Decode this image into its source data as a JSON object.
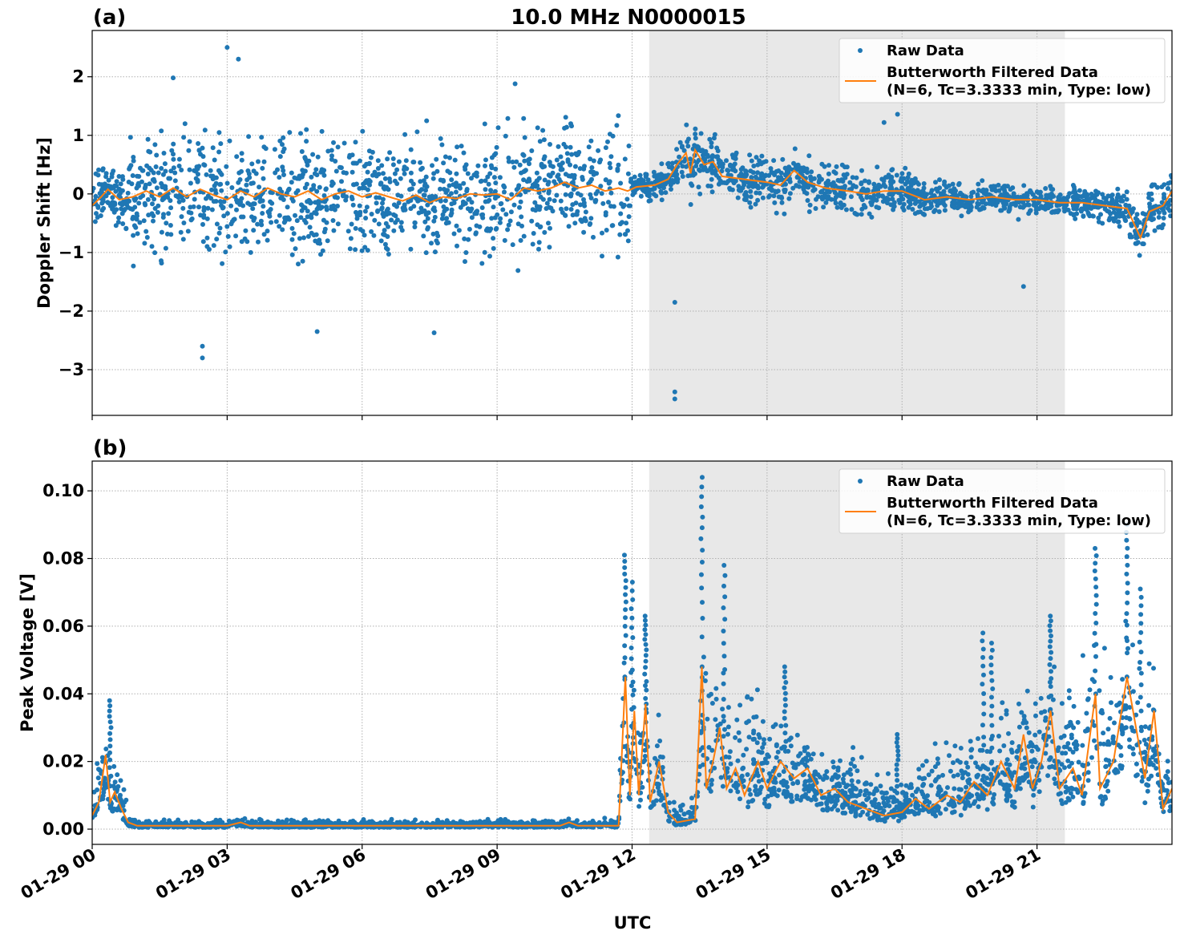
{
  "title": "10.0 MHz N0000015",
  "colors": {
    "raw": "#1f77b4",
    "filtered": "#ff7f0e",
    "shade": "#e8e8e8",
    "grid": "#b0b0b0"
  },
  "legend": {
    "raw": "Raw Data",
    "filtered_line1": "Butterworth Filtered Data",
    "filtered_line2": "(N=6, Tc=3.3333 min, Type: low)",
    "placement": "top-right"
  },
  "xlabel": "UTC",
  "x_ticks": [
    {
      "hour": 0,
      "label": "01-29 00"
    },
    {
      "hour": 3,
      "label": "01-29 03"
    },
    {
      "hour": 6,
      "label": "01-29 06"
    },
    {
      "hour": 9,
      "label": "01-29 09"
    },
    {
      "hour": 12,
      "label": "01-29 12"
    },
    {
      "hour": 15,
      "label": "01-29 15"
    },
    {
      "hour": 18,
      "label": "01-29 18"
    },
    {
      "hour": 21,
      "label": "01-29 21"
    }
  ],
  "chart_data": [
    {
      "type": "scatter",
      "panel": "(a)",
      "ylabel": "Doppler Shift [Hz]",
      "xlim_hours_utc": [
        0,
        24
      ],
      "ylim": [
        -3.78,
        2.79
      ],
      "y_ticks": [
        {
          "v": 2,
          "label": "2"
        },
        {
          "v": 1,
          "label": "1"
        },
        {
          "v": 0,
          "label": "0"
        },
        {
          "v": -1,
          "label": "−1"
        },
        {
          "v": -2,
          "label": "−2"
        },
        {
          "v": -3,
          "label": "−3"
        }
      ],
      "grid": true,
      "shaded_interval_hours_utc": [
        12.38,
        21.62
      ],
      "filtered": [
        [
          0,
          -0.2
        ],
        [
          0.2,
          -0.05
        ],
        [
          0.35,
          0.08
        ],
        [
          0.6,
          -0.1
        ],
        [
          0.9,
          -0.05
        ],
        [
          1.2,
          0.05
        ],
        [
          1.5,
          -0.05
        ],
        [
          1.8,
          0.1
        ],
        [
          2.1,
          -0.05
        ],
        [
          2.4,
          0.08
        ],
        [
          2.7,
          -0.02
        ],
        [
          3.0,
          -0.1
        ],
        [
          3.3,
          0.05
        ],
        [
          3.6,
          -0.05
        ],
        [
          3.9,
          0.1
        ],
        [
          4.2,
          0.0
        ],
        [
          4.5,
          -0.05
        ],
        [
          4.8,
          0.05
        ],
        [
          5.1,
          -0.1
        ],
        [
          5.4,
          0.0
        ],
        [
          5.7,
          0.05
        ],
        [
          6.0,
          -0.05
        ],
        [
          6.3,
          0.02
        ],
        [
          6.6,
          -0.05
        ],
        [
          6.9,
          -0.12
        ],
        [
          7.2,
          -0.02
        ],
        [
          7.5,
          -0.15
        ],
        [
          7.8,
          -0.05
        ],
        [
          8.1,
          -0.08
        ],
        [
          8.4,
          0.0
        ],
        [
          8.7,
          -0.02
        ],
        [
          9.0,
          0.0
        ],
        [
          9.3,
          -0.1
        ],
        [
          9.6,
          0.1
        ],
        [
          9.9,
          0.05
        ],
        [
          10.2,
          0.1
        ],
        [
          10.5,
          0.2
        ],
        [
          10.8,
          0.1
        ],
        [
          11.1,
          0.15
        ],
        [
          11.4,
          0.05
        ],
        [
          11.7,
          0.1
        ],
        [
          11.9,
          0.05
        ],
        [
          12.1,
          0.12
        ],
        [
          12.5,
          0.15
        ],
        [
          12.8,
          0.25
        ],
        [
          13.0,
          0.5
        ],
        [
          13.2,
          0.7
        ],
        [
          13.3,
          0.35
        ],
        [
          13.4,
          0.75
        ],
        [
          13.6,
          0.5
        ],
        [
          13.8,
          0.55
        ],
        [
          14.0,
          0.3
        ],
        [
          14.5,
          0.25
        ],
        [
          15.0,
          0.2
        ],
        [
          15.3,
          0.15
        ],
        [
          15.6,
          0.4
        ],
        [
          15.9,
          0.2
        ],
        [
          16.3,
          0.1
        ],
        [
          16.8,
          0.05
        ],
        [
          17.2,
          0.0
        ],
        [
          17.6,
          0.05
        ],
        [
          18.0,
          0.05
        ],
        [
          18.5,
          -0.1
        ],
        [
          19.0,
          -0.05
        ],
        [
          19.5,
          -0.1
        ],
        [
          20.0,
          -0.05
        ],
        [
          20.5,
          -0.1
        ],
        [
          21.0,
          -0.1
        ],
        [
          21.5,
          -0.15
        ],
        [
          22.0,
          -0.15
        ],
        [
          22.5,
          -0.2
        ],
        [
          23.0,
          -0.25
        ],
        [
          23.3,
          -0.75
        ],
        [
          23.5,
          -0.3
        ],
        [
          23.8,
          -0.2
        ],
        [
          24.0,
          0.05
        ]
      ],
      "raw_spread_halfwidth": [
        [
          0,
          0.35
        ],
        [
          0.8,
          0.4
        ],
        [
          0.9,
          0.8
        ],
        [
          11.9,
          0.8
        ],
        [
          12.0,
          0.15
        ],
        [
          12.8,
          0.2
        ],
        [
          13.0,
          0.45
        ],
        [
          14.0,
          0.35
        ],
        [
          18.0,
          0.3
        ],
        [
          19.0,
          0.2
        ],
        [
          22.0,
          0.2
        ],
        [
          23.3,
          0.35
        ],
        [
          24.0,
          0.3
        ]
      ],
      "raw_outliers": [
        [
          3.0,
          2.5
        ],
        [
          3.25,
          2.3
        ],
        [
          2.45,
          -2.8
        ],
        [
          2.45,
          -2.6
        ],
        [
          12.95,
          -3.5
        ],
        [
          12.95,
          -3.38
        ],
        [
          12.95,
          -1.85
        ],
        [
          1.8,
          1.98
        ],
        [
          9.4,
          1.88
        ],
        [
          7.6,
          -2.37
        ],
        [
          5.0,
          -2.35
        ],
        [
          17.9,
          1.36
        ],
        [
          17.6,
          1.22
        ],
        [
          20.7,
          -1.58
        ]
      ]
    },
    {
      "type": "scatter",
      "panel": "(b)",
      "ylabel": "Peak Voltage [V]",
      "xlim_hours_utc": [
        0,
        24
      ],
      "ylim": [
        -0.0045,
        0.1088
      ],
      "y_ticks": [
        {
          "v": 0.0,
          "label": "0.00"
        },
        {
          "v": 0.02,
          "label": "0.02"
        },
        {
          "v": 0.04,
          "label": "0.04"
        },
        {
          "v": 0.06,
          "label": "0.06"
        },
        {
          "v": 0.08,
          "label": "0.08"
        },
        {
          "v": 0.1,
          "label": "0.10"
        }
      ],
      "grid": true,
      "shaded_interval_hours_utc": [
        12.38,
        21.62
      ],
      "filtered": [
        [
          0,
          0.004
        ],
        [
          0.15,
          0.008
        ],
        [
          0.3,
          0.022
        ],
        [
          0.4,
          0.008
        ],
        [
          0.5,
          0.011
        ],
        [
          0.65,
          0.006
        ],
        [
          0.8,
          0.002
        ],
        [
          1.0,
          0.001
        ],
        [
          3.0,
          0.001
        ],
        [
          3.3,
          0.002
        ],
        [
          3.5,
          0.001
        ],
        [
          10.4,
          0.001
        ],
        [
          10.6,
          0.002
        ],
        [
          10.8,
          0.001
        ],
        [
          11.7,
          0.001
        ],
        [
          11.85,
          0.045
        ],
        [
          11.95,
          0.01
        ],
        [
          12.05,
          0.035
        ],
        [
          12.15,
          0.01
        ],
        [
          12.3,
          0.037
        ],
        [
          12.4,
          0.008
        ],
        [
          12.6,
          0.02
        ],
        [
          12.8,
          0.005
        ],
        [
          13.0,
          0.002
        ],
        [
          13.4,
          0.003
        ],
        [
          13.55,
          0.048
        ],
        [
          13.65,
          0.012
        ],
        [
          13.8,
          0.02
        ],
        [
          13.95,
          0.03
        ],
        [
          14.1,
          0.012
        ],
        [
          14.3,
          0.018
        ],
        [
          14.5,
          0.01
        ],
        [
          14.8,
          0.02
        ],
        [
          15.0,
          0.012
        ],
        [
          15.3,
          0.02
        ],
        [
          15.6,
          0.015
        ],
        [
          15.9,
          0.018
        ],
        [
          16.2,
          0.01
        ],
        [
          16.5,
          0.012
        ],
        [
          16.8,
          0.008
        ],
        [
          17.2,
          0.006
        ],
        [
          17.6,
          0.004
        ],
        [
          18.0,
          0.005
        ],
        [
          18.3,
          0.009
        ],
        [
          18.6,
          0.006
        ],
        [
          19.0,
          0.01
        ],
        [
          19.3,
          0.008
        ],
        [
          19.6,
          0.014
        ],
        [
          19.9,
          0.01
        ],
        [
          20.2,
          0.02
        ],
        [
          20.5,
          0.012
        ],
        [
          20.7,
          0.028
        ],
        [
          20.9,
          0.012
        ],
        [
          21.1,
          0.02
        ],
        [
          21.3,
          0.035
        ],
        [
          21.5,
          0.012
        ],
        [
          21.8,
          0.018
        ],
        [
          22.0,
          0.01
        ],
        [
          22.3,
          0.04
        ],
        [
          22.4,
          0.012
        ],
        [
          22.7,
          0.02
        ],
        [
          23.0,
          0.045
        ],
        [
          23.2,
          0.03
        ],
        [
          23.4,
          0.015
        ],
        [
          23.6,
          0.035
        ],
        [
          23.8,
          0.006
        ],
        [
          24.0,
          0.012
        ]
      ],
      "raw_spread_halfwidth": [
        [
          0,
          0.004
        ],
        [
          0.3,
          0.012
        ],
        [
          0.7,
          0.005
        ],
        [
          0.8,
          0.001
        ],
        [
          11.7,
          0.001
        ],
        [
          11.8,
          0.02
        ],
        [
          12.5,
          0.012
        ],
        [
          12.8,
          0.003
        ],
        [
          13.5,
          0.004
        ],
        [
          13.6,
          0.02
        ],
        [
          15.0,
          0.012
        ],
        [
          17.0,
          0.007
        ],
        [
          18.0,
          0.006
        ],
        [
          20.0,
          0.012
        ],
        [
          22.5,
          0.02
        ],
        [
          23.3,
          0.02
        ],
        [
          23.8,
          0.008
        ],
        [
          24.0,
          0.008
        ]
      ],
      "raw_peaks": [
        [
          0.4,
          0.038
        ],
        [
          11.85,
          0.081
        ],
        [
          12.0,
          0.073
        ],
        [
          12.3,
          0.063
        ],
        [
          13.55,
          0.104
        ],
        [
          14.05,
          0.078
        ],
        [
          15.4,
          0.048
        ],
        [
          17.9,
          0.028
        ],
        [
          19.8,
          0.058
        ],
        [
          20.0,
          0.055
        ],
        [
          21.3,
          0.063
        ],
        [
          22.3,
          0.083
        ],
        [
          23.0,
          0.09
        ],
        [
          23.3,
          0.071
        ]
      ]
    }
  ]
}
